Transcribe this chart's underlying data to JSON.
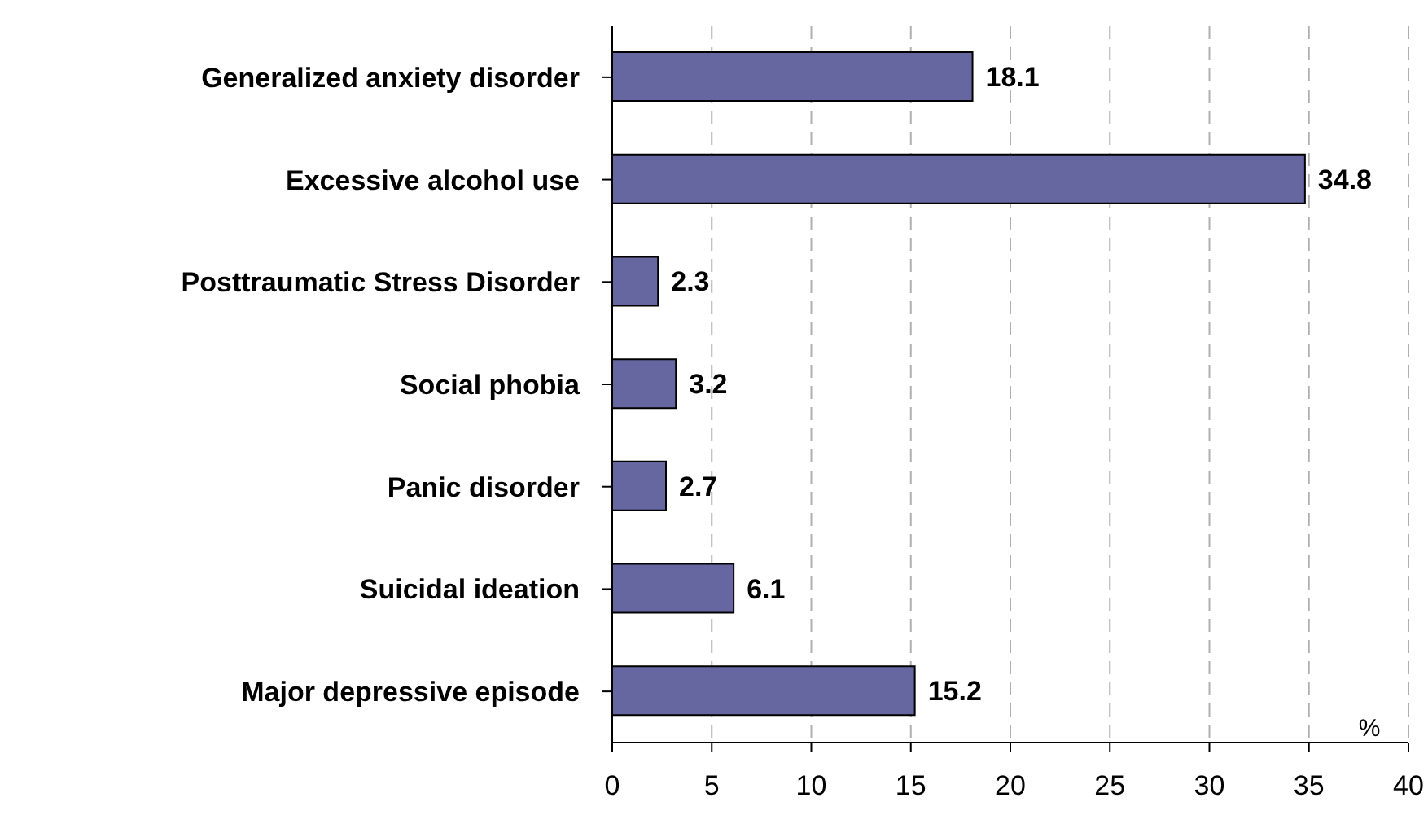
{
  "chart_data": {
    "type": "bar",
    "orientation": "horizontal",
    "categories": [
      "Generalized anxiety disorder",
      "Excessive alcohol use",
      "Posttraumatic Stress Disorder",
      "Social phobia",
      "Panic disorder",
      "Suicidal ideation",
      "Major depressive episode"
    ],
    "values": [
      18.1,
      34.8,
      2.3,
      3.2,
      2.7,
      6.1,
      15.2
    ],
    "color": "#6666a0",
    "xlabel": "%",
    "xlim": [
      0,
      40
    ],
    "xticks": [
      0,
      5,
      10,
      15,
      20,
      25,
      30,
      35,
      40
    ],
    "grid": "x",
    "data_labels": true,
    "legend": false
  }
}
